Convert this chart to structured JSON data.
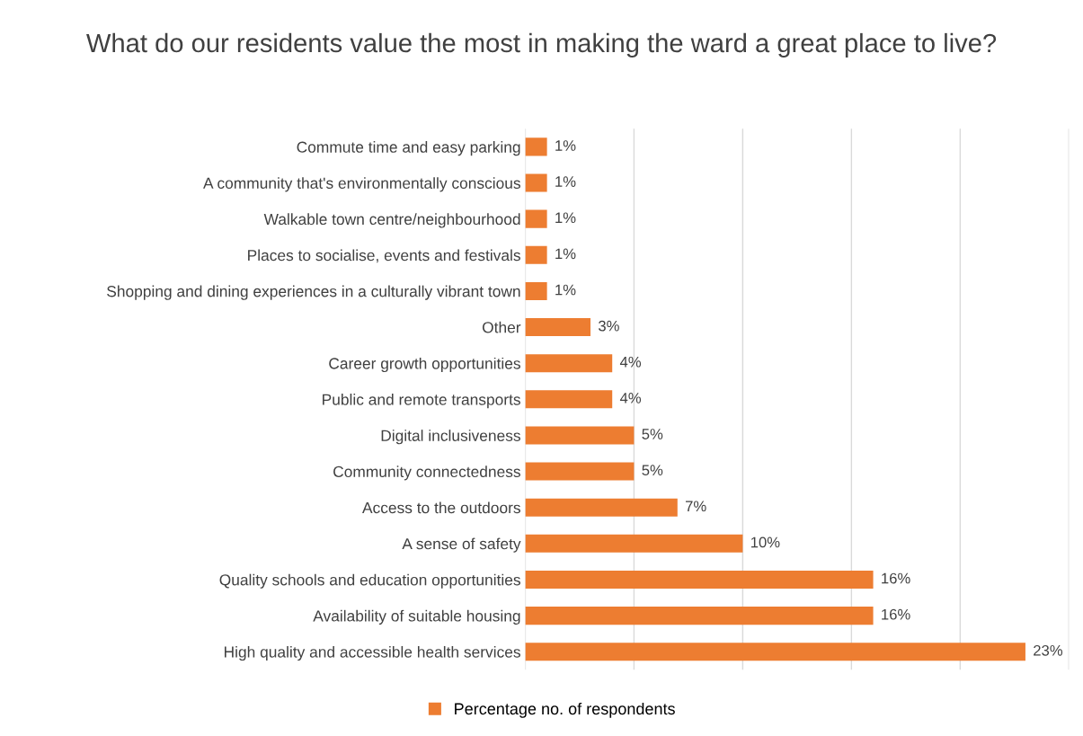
{
  "chart_data": {
    "type": "bar",
    "orientation": "horizontal",
    "title": "What do our residents value the most in making the ward a great place to live?",
    "categories": [
      "Commute time and easy parking",
      "A community that's environmentally conscious",
      "Walkable town centre/neighbourhood",
      "Places to socialise, events and festivals",
      "Shopping and dining experiences in a culturally vibrant town",
      "Other",
      "Career growth opportunities",
      "Public and remote transports",
      "Digital inclusiveness",
      "Community connectedness",
      "Access to the outdoors",
      "A sense of safety",
      "Quality schools and education opportunities",
      "Availability of suitable housing",
      "High quality and accessible health services"
    ],
    "series": [
      {
        "name": "Percentage no. of respondents",
        "color": "#ed7d31",
        "values": [
          1,
          1,
          1,
          1,
          1,
          3,
          4,
          4,
          5,
          5,
          7,
          10,
          16,
          16,
          23
        ],
        "value_labels": [
          "1%",
          "1%",
          "1%",
          "1%",
          "1%",
          "3%",
          "4%",
          "4%",
          "5%",
          "5%",
          "7%",
          "10%",
          "16%",
          "16%",
          "23%"
        ]
      }
    ],
    "xlim": [
      0,
      25
    ],
    "xticks": [
      {
        "value": 0,
        "label": null
      },
      {
        "value": 5,
        "label": null
      },
      {
        "value": 10,
        "label": null
      },
      {
        "value": 15,
        "label": null
      },
      {
        "value": 20,
        "label": null
      },
      {
        "value": 25,
        "label": null
      }
    ],
    "tick_labels": "y",
    "grid": "x",
    "legend": "bottom"
  }
}
